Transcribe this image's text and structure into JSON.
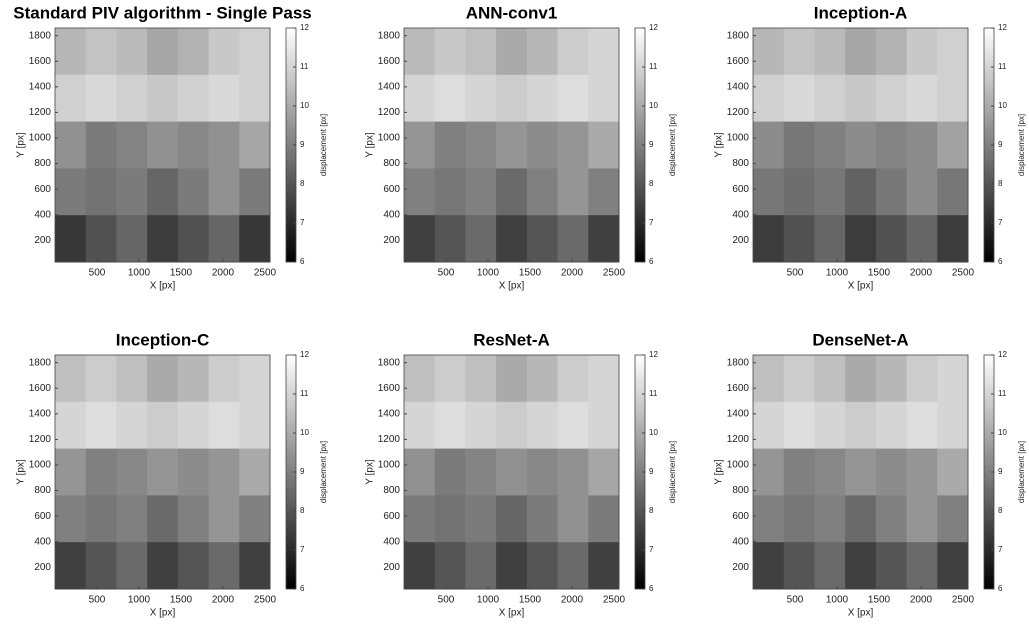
{
  "chart_data": [
    {
      "type": "heatmap",
      "title": "Standard PIV algorithm - Single Pass",
      "xlabel": "X [px]",
      "ylabel": "Y [px]",
      "colorbar_label": "displacement [px]",
      "colormap": "gray",
      "xlim": [
        0,
        2560
      ],
      "ylim": [
        30,
        1860
      ],
      "xticks": [
        500,
        1000,
        1500,
        2000,
        2500
      ],
      "yticks": [
        200,
        400,
        600,
        800,
        1000,
        1200,
        1400,
        1600,
        1800
      ],
      "clim": [
        6,
        12
      ],
      "cticks": [
        6,
        7,
        8,
        9,
        10,
        11,
        12
      ],
      "z": [
        [
          10.3,
          10.6,
          10.4,
          9.9,
          10.2,
          10.7,
          10.9
        ],
        [
          10.9,
          11.1,
          10.9,
          10.7,
          10.9,
          11.1,
          10.9
        ],
        [
          9.4,
          8.9,
          9.1,
          9.4,
          9.2,
          9.4,
          9.9
        ],
        [
          8.9,
          8.7,
          8.9,
          8.4,
          8.9,
          9.4,
          8.9
        ],
        [
          7.3,
          7.9,
          8.4,
          7.4,
          7.9,
          8.4,
          7.3
        ]
      ]
    },
    {
      "type": "heatmap",
      "title": "ANN-conv1",
      "xlabel": "X [px]",
      "ylabel": "Y [px]",
      "colorbar_label": "displacement [px]",
      "colormap": "gray",
      "xlim": [
        0,
        2560
      ],
      "ylim": [
        30,
        1860
      ],
      "xticks": [
        500,
        1000,
        1500,
        2000,
        2500
      ],
      "yticks": [
        200,
        400,
        600,
        800,
        1000,
        1200,
        1400,
        1600,
        1800
      ],
      "clim": [
        6,
        12
      ],
      "cticks": [
        6,
        7,
        8,
        9,
        10,
        11,
        12
      ],
      "z": [
        [
          10.4,
          10.7,
          10.5,
          10,
          10.3,
          10.8,
          11
        ],
        [
          11,
          11.2,
          11,
          10.8,
          11,
          11.2,
          11
        ],
        [
          9.5,
          9,
          9.2,
          9.5,
          9.3,
          9.5,
          10
        ],
        [
          9,
          8.8,
          9,
          8.5,
          9,
          9.5,
          9
        ],
        [
          7.5,
          8,
          8.5,
          7.5,
          8,
          8.5,
          7.5
        ]
      ]
    },
    {
      "type": "heatmap",
      "title": "Inception-A",
      "xlabel": "X [px]",
      "ylabel": "Y [px]",
      "colorbar_label": "displacement [px]",
      "colormap": "gray",
      "xlim": [
        0,
        2560
      ],
      "ylim": [
        30,
        1860
      ],
      "xticks": [
        500,
        1000,
        1500,
        2000,
        2500
      ],
      "yticks": [
        200,
        400,
        600,
        800,
        1000,
        1200,
        1400,
        1600,
        1800
      ],
      "clim": [
        6,
        12
      ],
      "cticks": [
        6,
        7,
        8,
        9,
        10,
        11,
        12
      ],
      "z": [
        [
          10.3,
          10.6,
          10.4,
          9.9,
          10.2,
          10.7,
          10.9
        ],
        [
          10.9,
          11.1,
          10.9,
          10.7,
          10.9,
          11.1,
          10.9
        ],
        [
          9.3,
          8.8,
          9,
          9.3,
          9.1,
          9.3,
          9.8
        ],
        [
          8.8,
          8.6,
          8.8,
          8.3,
          8.8,
          9.3,
          8.8
        ],
        [
          7.4,
          7.9,
          8.4,
          7.4,
          7.9,
          8.4,
          7.4
        ]
      ]
    },
    {
      "type": "heatmap",
      "title": "Inception-C",
      "xlabel": "X [px]",
      "ylabel": "Y [px]",
      "colorbar_label": "displacement [px]",
      "colormap": "gray",
      "xlim": [
        0,
        2560
      ],
      "ylim": [
        30,
        1860
      ],
      "xticks": [
        500,
        1000,
        1500,
        2000,
        2500
      ],
      "yticks": [
        200,
        400,
        600,
        800,
        1000,
        1200,
        1400,
        1600,
        1800
      ],
      "clim": [
        6,
        12
      ],
      "cticks": [
        6,
        7,
        8,
        9,
        10,
        11,
        12
      ],
      "z": [
        [
          10.5,
          10.8,
          10.5,
          10,
          10.3,
          10.8,
          11
        ],
        [
          11,
          11.2,
          11,
          10.8,
          11,
          11.2,
          11
        ],
        [
          9.5,
          9,
          9.2,
          9.5,
          9.3,
          9.5,
          10
        ],
        [
          9,
          8.8,
          9,
          8.5,
          9,
          9.5,
          9
        ],
        [
          7.5,
          8,
          8.5,
          7.5,
          8,
          8.5,
          7.5
        ]
      ]
    },
    {
      "type": "heatmap",
      "title": "ResNet-A",
      "xlabel": "X [px]",
      "ylabel": "Y [px]",
      "colorbar_label": "displacement [px]",
      "colormap": "gray",
      "xlim": [
        0,
        2560
      ],
      "ylim": [
        30,
        1860
      ],
      "xticks": [
        500,
        1000,
        1500,
        2000,
        2500
      ],
      "yticks": [
        200,
        400,
        600,
        800,
        1000,
        1200,
        1400,
        1600,
        1800
      ],
      "clim": [
        6,
        12
      ],
      "cticks": [
        6,
        7,
        8,
        9,
        10,
        11,
        12
      ],
      "z": [
        [
          10.5,
          10.8,
          10.5,
          10,
          10.3,
          10.8,
          11
        ],
        [
          11,
          11.2,
          11,
          10.8,
          11,
          11.2,
          11
        ],
        [
          9.4,
          8.9,
          9.1,
          9.4,
          9.2,
          9.4,
          9.9
        ],
        [
          8.9,
          8.7,
          8.9,
          8.4,
          8.9,
          9.4,
          8.9
        ],
        [
          7.5,
          8,
          8.5,
          7.5,
          8,
          8.5,
          7.5
        ]
      ]
    },
    {
      "type": "heatmap",
      "title": "DenseNet-A",
      "xlabel": "X [px]",
      "ylabel": "Y [px]",
      "colorbar_label": "displacement [px]",
      "colormap": "gray",
      "xlim": [
        0,
        2560
      ],
      "ylim": [
        30,
        1860
      ],
      "xticks": [
        500,
        1000,
        1500,
        2000,
        2500
      ],
      "yticks": [
        200,
        400,
        600,
        800,
        1000,
        1200,
        1400,
        1600,
        1800
      ],
      "clim": [
        6,
        12
      ],
      "cticks": [
        6,
        7,
        8,
        9,
        10,
        11,
        12
      ],
      "z": [
        [
          10.5,
          10.8,
          10.5,
          10,
          10.3,
          10.8,
          11
        ],
        [
          11,
          11.2,
          11,
          10.8,
          11,
          11.2,
          11
        ],
        [
          9.5,
          9,
          9.2,
          9.5,
          9.3,
          9.5,
          10
        ],
        [
          9,
          8.8,
          9,
          8.5,
          9,
          9.5,
          9
        ],
        [
          7.5,
          8,
          8.5,
          7.5,
          8,
          8.5,
          7.5
        ]
      ]
    }
  ]
}
